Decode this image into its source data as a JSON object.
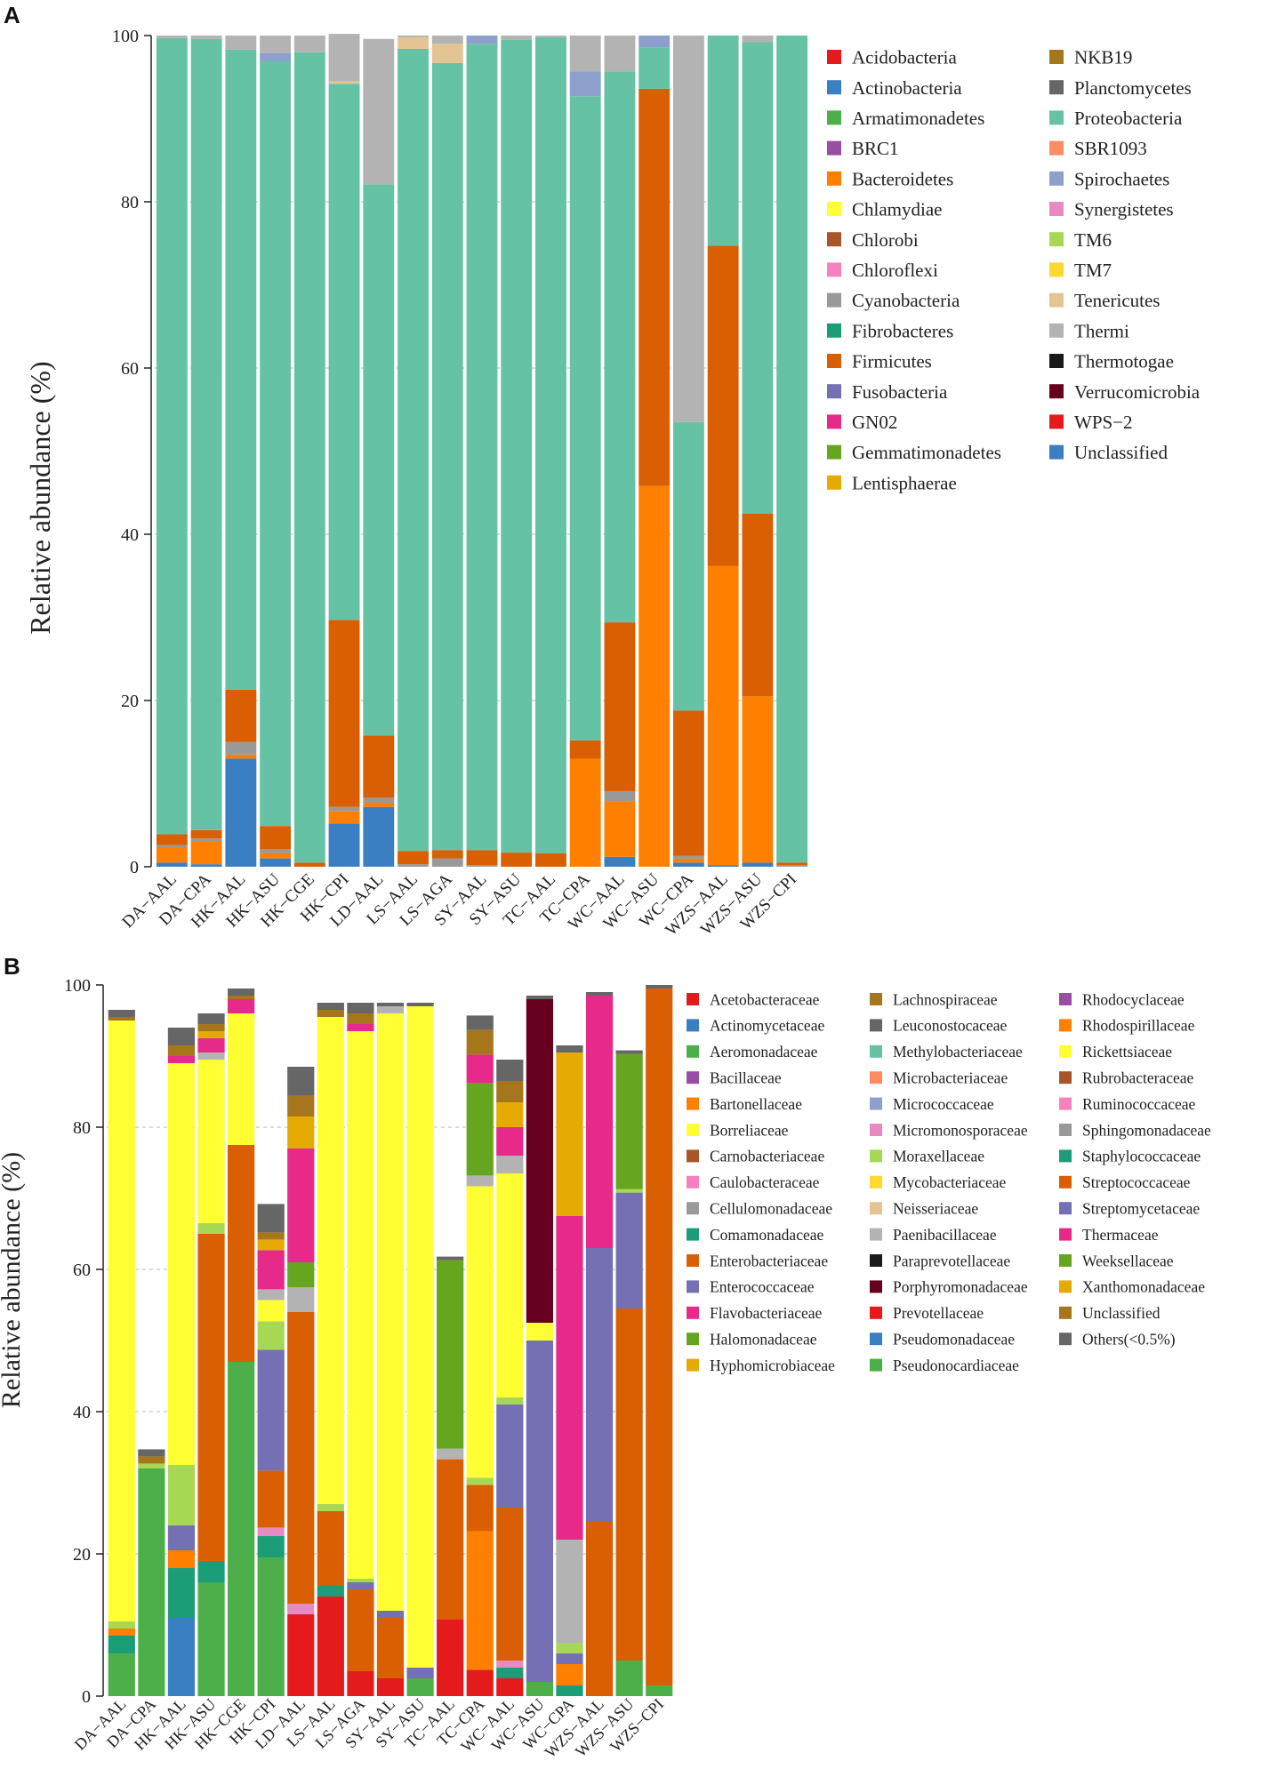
{
  "panels": [
    {
      "panel_label": "A",
      "ylabel": "Relative abundance (%)",
      "yticks": [
        "0",
        "20",
        "40",
        "60",
        "80",
        "100"
      ],
      "categories": [
        "DA−AAL",
        "DA−CPA",
        "HK−AAL",
        "HK−ASU",
        "HK−CGE",
        "HK−CPI",
        "LD−AAL",
        "LS−AAL",
        "LS−AGA",
        "SY−AAL",
        "SY−ASU",
        "TC−AAL",
        "TC−CPA",
        "WC−AAL",
        "WC−ASU",
        "WC−CPA",
        "WZS−AAL",
        "WZS−ASU",
        "WZS−CPI"
      ],
      "legend": [
        {
          "label": "Acidobacteria",
          "color": "#e41a1c"
        },
        {
          "label": "Actinobacteria",
          "color": "#3a7fc1"
        },
        {
          "label": "Armatimonadetes",
          "color": "#4daf4a"
        },
        {
          "label": "BRC1",
          "color": "#984ea3"
        },
        {
          "label": "Bacteroidetes",
          "color": "#ff7f00"
        },
        {
          "label": "Chlamydiae",
          "color": "#ffff33"
        },
        {
          "label": "Chlorobi",
          "color": "#a65628"
        },
        {
          "label": "Chloroflexi",
          "color": "#f781bf"
        },
        {
          "label": "Cyanobacteria",
          "color": "#999999"
        },
        {
          "label": "Fibrobacteres",
          "color": "#1b9e77"
        },
        {
          "label": "Firmicutes",
          "color": "#d95f02"
        },
        {
          "label": "Fusobacteria",
          "color": "#7570b3"
        },
        {
          "label": "GN02",
          "color": "#e7298a"
        },
        {
          "label": "Gemmatimonadetes",
          "color": "#66a61e"
        },
        {
          "label": "Lentisphaerae",
          "color": "#e6ab02"
        },
        {
          "label": "NKB19",
          "color": "#a6761d"
        },
        {
          "label": "Planctomycetes",
          "color": "#666666"
        },
        {
          "label": "Proteobacteria",
          "color": "#66c2a5"
        },
        {
          "label": "SBR1093",
          "color": "#fc8d62"
        },
        {
          "label": "Spirochaetes",
          "color": "#8da0cb"
        },
        {
          "label": "Synergistetes",
          "color": "#e78ac3"
        },
        {
          "label": "TM6",
          "color": "#a6d854"
        },
        {
          "label": "TM7",
          "color": "#ffd92f"
        },
        {
          "label": "Tenericutes",
          "color": "#e5c494"
        },
        {
          "label": "Thermi",
          "color": "#b3b3b3"
        },
        {
          "label": "Thermotogae",
          "color": "#1a1a1a"
        },
        {
          "label": "Verrucomicrobia",
          "color": "#67001f"
        },
        {
          "label": "WPS−2",
          "color": "#e41a1c"
        },
        {
          "label": "Unclassified",
          "color": "#3a7fc1"
        }
      ]
    },
    {
      "panel_label": "B",
      "ylabel": "Relative abundance (%)",
      "yticks": [
        "0",
        "20",
        "40",
        "60",
        "80",
        "100"
      ],
      "categories": [
        "DA−AAL",
        "DA−CPA",
        "HK−AAL",
        "HK−ASU",
        "HK−CGE",
        "HK−CPI",
        "LD−AAL",
        "LS−AAL",
        "LS−AGA",
        "SY−AAL",
        "SY−ASU",
        "TC−AAL",
        "TC−CPA",
        "WC−AAL",
        "WC−ASU",
        "WC−CPA",
        "WZS−AAL",
        "WZS−ASU",
        "WZS−CPI"
      ],
      "legend": [
        {
          "label": "Acetobacteraceae",
          "color": "#e41a1c"
        },
        {
          "label": "Actinomycetaceae",
          "color": "#3a7fc1"
        },
        {
          "label": "Aeromonadaceae",
          "color": "#4daf4a"
        },
        {
          "label": "Bacillaceae",
          "color": "#984ea3"
        },
        {
          "label": "Bartonellaceae",
          "color": "#ff7f00"
        },
        {
          "label": "Borreliaceae",
          "color": "#ffff33"
        },
        {
          "label": "Carnobacteriaceae",
          "color": "#a65628"
        },
        {
          "label": "Caulobacteraceae",
          "color": "#f781bf"
        },
        {
          "label": "Cellulomonadaceae",
          "color": "#999999"
        },
        {
          "label": "Comamonadaceae",
          "color": "#1b9e77"
        },
        {
          "label": "Enterobacteriaceae",
          "color": "#d95f02"
        },
        {
          "label": "Enterococcaceae",
          "color": "#7570b3"
        },
        {
          "label": "Flavobacteriaceae",
          "color": "#e7298a"
        },
        {
          "label": "Halomonadaceae",
          "color": "#66a61e"
        },
        {
          "label": "Hyphomicrobiaceae",
          "color": "#e6ab02"
        },
        {
          "label": "Lachnospiraceae",
          "color": "#a6761d"
        },
        {
          "label": "Leuconostocaceae",
          "color": "#666666"
        },
        {
          "label": "Methylobacteriaceae",
          "color": "#66c2a5"
        },
        {
          "label": "Microbacteriaceae",
          "color": "#fc8d62"
        },
        {
          "label": "Micrococcaceae",
          "color": "#8da0cb"
        },
        {
          "label": "Micromonosporaceae",
          "color": "#e78ac3"
        },
        {
          "label": "Moraxellaceae",
          "color": "#a6d854"
        },
        {
          "label": "Mycobacteriaceae",
          "color": "#ffd92f"
        },
        {
          "label": "Neisseriaceae",
          "color": "#e5c494"
        },
        {
          "label": "Paenibacillaceae",
          "color": "#b3b3b3"
        },
        {
          "label": "Paraprevotellaceae",
          "color": "#1a1a1a"
        },
        {
          "label": "Porphyromonadaceae",
          "color": "#67001f"
        },
        {
          "label": "Prevotellaceae",
          "color": "#e41a1c"
        },
        {
          "label": "Pseudomonadaceae",
          "color": "#3a7fc1"
        },
        {
          "label": "Pseudonocardiaceae",
          "color": "#4daf4a"
        },
        {
          "label": "Rhodocyclaceae",
          "color": "#984ea3"
        },
        {
          "label": "Rhodospirillaceae",
          "color": "#ff7f00"
        },
        {
          "label": "Rickettsiaceae",
          "color": "#ffff33"
        },
        {
          "label": "Rubrobacteraceae",
          "color": "#a65628"
        },
        {
          "label": "Ruminococcaceae",
          "color": "#f781bf"
        },
        {
          "label": "Sphingomonadaceae",
          "color": "#999999"
        },
        {
          "label": "Staphylococcaceae",
          "color": "#1b9e77"
        },
        {
          "label": "Streptococcaceae",
          "color": "#d95f02"
        },
        {
          "label": "Streptomycetaceae",
          "color": "#7570b3"
        },
        {
          "label": "Thermaceae",
          "color": "#e7298a"
        },
        {
          "label": "Weeksellaceae",
          "color": "#66a61e"
        },
        {
          "label": "Xanthomonadaceae",
          "color": "#e6ab02"
        },
        {
          "label": "Unclassified",
          "color": "#a6761d"
        },
        {
          "label": "Others(<0.5%)",
          "color": "#666666"
        }
      ]
    }
  ],
  "chart_data": [
    {
      "type": "bar",
      "stacked": true,
      "title": "A",
      "xlabel": "",
      "ylabel": "Relative abundance (%)",
      "ylim": [
        0,
        100
      ],
      "grid": true,
      "categories": [
        "DA−AAL",
        "DA−CPA",
        "HK−AAL",
        "HK−ASU",
        "HK−CGE",
        "HK−CPI",
        "LD−AAL",
        "LS−AAL",
        "LS−AGA",
        "SY−AAL",
        "SY−ASU",
        "TC−AAL",
        "TC−CPA",
        "WC−AAL",
        "WC−ASU",
        "WC−CPA",
        "WZS−AAL",
        "WZS−ASU",
        "WZS−CPI"
      ],
      "series": [
        {
          "name": "Actinobacteria",
          "color": "#3a7fc1",
          "values": [
            0.5,
            0.3,
            13,
            1,
            0,
            5.2,
            7.2,
            0,
            0,
            0,
            0,
            0,
            0,
            1.2,
            0,
            0.5,
            0.2,
            0.5,
            0
          ]
        },
        {
          "name": "Bacteroidetes",
          "color": "#ff7f00",
          "values": [
            1.8,
            2.8,
            0.5,
            0.6,
            0,
            1.5,
            0.5,
            0,
            0,
            0,
            0,
            0,
            13,
            6.7,
            45.8,
            0.5,
            36,
            20,
            0
          ]
        },
        {
          "name": "Cyanobacteria",
          "color": "#999999",
          "values": [
            0.3,
            0.3,
            1.5,
            0.5,
            0,
            0.5,
            0.6,
            0.3,
            1.0,
            0.2,
            0,
            0,
            0,
            1.2,
            0,
            0.3,
            0,
            0,
            0.2
          ]
        },
        {
          "name": "Firmicutes",
          "color": "#d95f02",
          "values": [
            1.3,
            1.0,
            6.3,
            2.8,
            0.5,
            22.5,
            7.5,
            1.6,
            1.0,
            1.8,
            1.7,
            1.6,
            2.2,
            20.3,
            47.8,
            17.5,
            38.5,
            22,
            0.3
          ]
        },
        {
          "name": "Proteobacteria",
          "color": "#66c2a5",
          "values": [
            95.8,
            95.2,
            77,
            92,
            97.5,
            64.5,
            66.3,
            96.5,
            94.7,
            97.0,
            97.8,
            98.2,
            77.5,
            66.3,
            5,
            34.7,
            25.3,
            56.7,
            99.5
          ]
        },
        {
          "name": "Spirochaetes",
          "color": "#8da0cb",
          "values": [
            0,
            0,
            0,
            1.0,
            0,
            0,
            0,
            0,
            0,
            1.0,
            0,
            0,
            3.0,
            0,
            1.4,
            0,
            0,
            0,
            0
          ]
        },
        {
          "name": "Tenericutes",
          "color": "#e5c494",
          "values": [
            0,
            0,
            0,
            0,
            0,
            0.3,
            0,
            1.4,
            2.3,
            0,
            0,
            0,
            0,
            0,
            0,
            0,
            0,
            0,
            0
          ]
        },
        {
          "name": "Thermi",
          "color": "#b3b3b3",
          "values": [
            0.3,
            0.4,
            1.7,
            2.1,
            2.0,
            5.7,
            17.5,
            0.2,
            1.0,
            0,
            0.5,
            0.2,
            4.3,
            4.3,
            0,
            46.5,
            0,
            0.8,
            0
          ]
        }
      ]
    },
    {
      "type": "bar",
      "stacked": true,
      "title": "B",
      "xlabel": "",
      "ylabel": "Relative abundance (%)",
      "ylim": [
        0,
        100
      ],
      "grid": true,
      "categories": [
        "DA−AAL",
        "DA−CPA",
        "HK−AAL",
        "HK−ASU",
        "HK−CGE",
        "HK−CPI",
        "LD−AAL",
        "LS−AAL",
        "LS−AGA",
        "SY−AAL",
        "SY−ASU",
        "TC−AAL",
        "TC−CPA",
        "WC−AAL",
        "WC−ASU",
        "WC−CPA",
        "WZS−AAL",
        "WZS−ASU",
        "WZS−CPI"
      ],
      "series": [
        {
          "name": "Pseudonocardiaceae",
          "color": "#4daf4a",
          "values": [
            6,
            32,
            0,
            16,
            47,
            19.5,
            0,
            0,
            0,
            0,
            2.5,
            0,
            0,
            0,
            2,
            0,
            0,
            5,
            1.5
          ]
        },
        {
          "name": "Pseudomonadaceae",
          "color": "#3a7fc1",
          "values": [
            0,
            0,
            11,
            0,
            0,
            0,
            0,
            0,
            0,
            0,
            0,
            0,
            0,
            0,
            0,
            0,
            0,
            0,
            0
          ]
        },
        {
          "name": "Prevotellaceae",
          "color": "#e41a1c",
          "values": [
            0,
            0,
            0,
            0,
            0,
            0,
            11.5,
            14,
            3.5,
            2.5,
            0,
            10.8,
            3.7,
            2.5,
            0,
            0,
            0,
            0,
            0
          ]
        },
        {
          "name": "Comamonadaceae",
          "color": "#1b9e77",
          "values": [
            2.5,
            0,
            7,
            3,
            0,
            3,
            0,
            1.5,
            0,
            0,
            0,
            0,
            0,
            1.5,
            0,
            1.5,
            0,
            0,
            0
          ]
        },
        {
          "name": "Micromonosporaceae",
          "color": "#e78ac3",
          "values": [
            0,
            0,
            0,
            0,
            0,
            1.2,
            1.5,
            0,
            0,
            0,
            0,
            0,
            0,
            1,
            0,
            0,
            0,
            0,
            0
          ]
        },
        {
          "name": "Rhodospirillaceae",
          "color": "#ff7f00",
          "values": [
            1,
            0,
            2.5,
            0,
            0,
            0,
            0,
            0,
            0,
            0,
            0,
            0,
            19.5,
            0,
            0,
            3,
            0,
            0,
            0
          ]
        },
        {
          "name": "Streptococcaceae",
          "color": "#d95f02",
          "values": [
            0,
            0,
            0,
            46,
            30.5,
            8,
            41,
            10.5,
            11.5,
            8.5,
            0,
            22.5,
            6.5,
            21.5,
            0,
            0,
            24.5,
            49.5,
            98
          ]
        },
        {
          "name": "Streptomycetaceae",
          "color": "#7570b3",
          "values": [
            0,
            0,
            3.5,
            0,
            0,
            17,
            0,
            0,
            1,
            1,
            1.5,
            0,
            0,
            14.5,
            48,
            1.5,
            38.5,
            16.3,
            0
          ]
        },
        {
          "name": "Moraxellaceae",
          "color": "#a6d854",
          "values": [
            1,
            0.7,
            8.5,
            1.5,
            0,
            4,
            0,
            1,
            0.5,
            0,
            0,
            0,
            1,
            1,
            0,
            1.5,
            0,
            0.5,
            0
          ]
        },
        {
          "name": "Borreliaceae",
          "color": "#ffff33",
          "values": [
            84.5,
            0,
            56.5,
            23,
            18.5,
            3,
            0,
            68.5,
            77,
            84,
            93,
            0,
            41,
            31.5,
            2.5,
            0,
            0,
            0,
            0
          ]
        },
        {
          "name": "Paenibacillaceae",
          "color": "#b3b3b3",
          "values": [
            0,
            0,
            0,
            1,
            0,
            1.5,
            3.5,
            0,
            0,
            1,
            0,
            1.5,
            1.5,
            2.5,
            0,
            14.5,
            0,
            0,
            0
          ]
        },
        {
          "name": "Halomonadaceae",
          "color": "#66a61e",
          "values": [
            0,
            0,
            0,
            0,
            0,
            0,
            3.5,
            0,
            0,
            0,
            0,
            26.5,
            13,
            0,
            0,
            0,
            0,
            19,
            0
          ]
        },
        {
          "name": "Porphyromonadaceae",
          "color": "#67001f",
          "values": [
            0,
            0,
            0,
            0,
            0,
            0,
            0,
            0,
            0,
            0,
            0,
            0,
            0,
            0,
            45.5,
            0,
            0,
            0,
            0
          ]
        },
        {
          "name": "Thermaceae",
          "color": "#e7298a",
          "values": [
            0,
            0,
            1,
            2,
            2,
            5.5,
            16,
            0,
            1,
            0,
            0,
            0,
            4,
            4,
            0,
            45.5,
            35.5,
            0,
            0
          ]
        },
        {
          "name": "Xanthomonadaceae",
          "color": "#e6ab02",
          "values": [
            0,
            0,
            0,
            1,
            0,
            1.5,
            4.5,
            0,
            0,
            0,
            0,
            0,
            0,
            3.5,
            0,
            23,
            0,
            0,
            0
          ]
        },
        {
          "name": "Unclassified",
          "color": "#a6761d",
          "values": [
            0.5,
            1,
            1.5,
            1,
            0.5,
            1,
            3,
            1,
            1.5,
            0,
            0,
            0,
            3.5,
            3,
            0,
            0,
            0,
            0,
            0
          ]
        },
        {
          "name": "Others(<0.5%)",
          "color": "#666666",
          "values": [
            1,
            1,
            2.5,
            1.5,
            1,
            4,
            4,
            1,
            1.5,
            0.5,
            0.5,
            0.5,
            2,
            3,
            0.5,
            1,
            0.5,
            0.5,
            0.5
          ]
        }
      ]
    }
  ]
}
